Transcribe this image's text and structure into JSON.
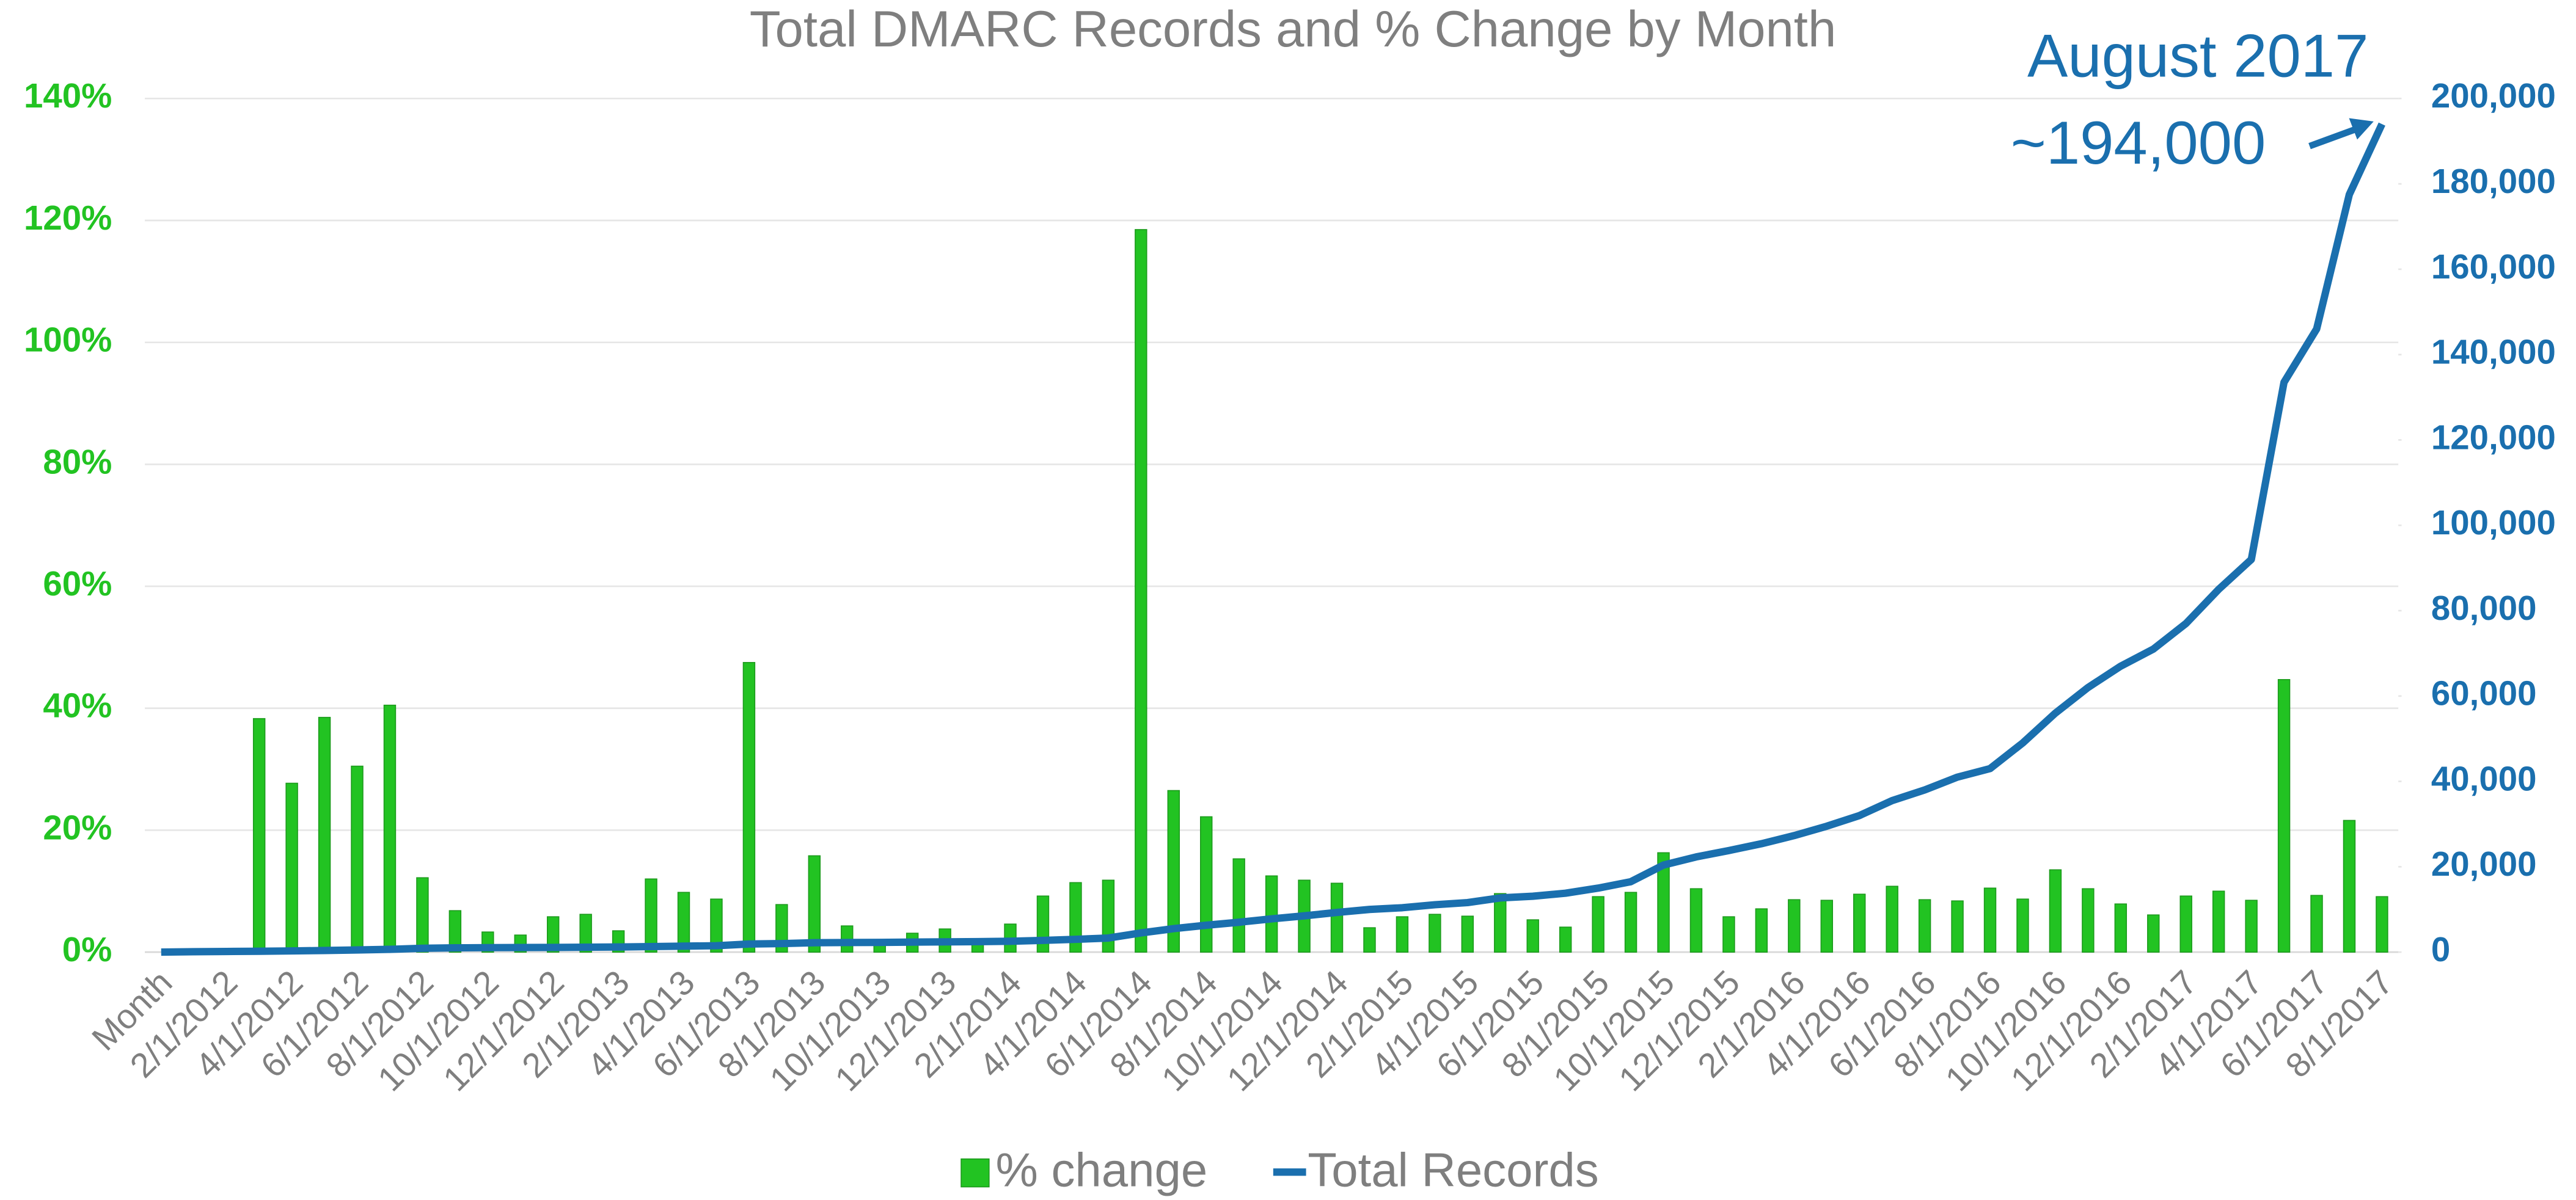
{
  "chart_data": {
    "type": "bar-line",
    "title": "Total DMARC Records and % Change by Month",
    "annotations": [
      "August 2017",
      "~194,000"
    ],
    "categories": [
      "Month",
      null,
      "2/1/2012",
      null,
      "4/1/2012",
      null,
      "6/1/2012",
      null,
      "8/1/2012",
      null,
      "10/1/2012",
      null,
      "12/1/2012",
      null,
      "2/1/2013",
      null,
      "4/1/2013",
      null,
      "6/1/2013",
      null,
      "8/1/2013",
      null,
      "10/1/2013",
      null,
      "12/1/2013",
      null,
      "2/1/2014",
      null,
      "4/1/2014",
      null,
      "6/1/2014",
      null,
      "8/1/2014",
      null,
      "10/1/2014",
      null,
      "12/1/2014",
      null,
      "2/1/2015",
      null,
      "4/1/2015",
      null,
      "6/1/2015",
      null,
      "8/1/2015",
      null,
      "10/1/2015",
      null,
      "12/1/2015",
      null,
      "2/1/2016",
      null,
      "4/1/2016",
      null,
      "6/1/2016",
      null,
      "8/1/2016",
      null,
      "10/1/2016",
      null,
      "12/1/2016",
      null,
      "2/1/2017",
      null,
      "4/1/2017",
      null,
      "6/1/2017",
      null,
      "8/1/2017"
    ],
    "series": [
      {
        "name": "% change",
        "type": "bar",
        "color": "#22c322",
        "values": [
          null,
          null,
          null,
          38.3,
          27.7,
          38.5,
          30.5,
          40.5,
          12.2,
          6.8,
          3.3,
          2.8,
          5.8,
          6.2,
          3.5,
          12,
          9.8,
          8.7,
          47.5,
          7.8,
          15.8,
          4.3,
          1.3,
          3.1,
          3.8,
          2.2,
          4.6,
          9.2,
          11.4,
          11.8,
          118.5,
          26.5,
          22.2,
          15.3,
          12.5,
          11.8,
          11.3,
          4,
          5.8,
          6.2,
          5.9,
          9.6,
          5.3,
          4.1,
          9.1,
          9.8,
          16.3,
          10.4,
          5.8,
          7.1,
          8.6,
          8.5,
          9.5,
          10.8,
          8.6,
          8.4,
          10.5,
          8.7,
          13.5,
          10.4,
          7.9,
          6.1,
          9.2,
          10,
          8.5,
          44.7,
          9.3,
          21.6,
          9.1
        ]
      },
      {
        "name": "Total Records",
        "type": "line",
        "axis": "y2",
        "color": "#1a6fae",
        "values": [
          0,
          100,
          150,
          200,
          280,
          380,
          500,
          650,
          900,
          1000,
          1050,
          1080,
          1100,
          1150,
          1200,
          1300,
          1400,
          1500,
          1900,
          2000,
          2200,
          2250,
          2280,
          2350,
          2400,
          2450,
          2550,
          2750,
          3000,
          3300,
          4500,
          5500,
          6300,
          7000,
          7800,
          8500,
          9300,
          10000,
          10400,
          11100,
          11600,
          12700,
          13100,
          13800,
          15000,
          16500,
          20400,
          22300,
          23800,
          25400,
          27300,
          29500,
          32000,
          35500,
          38000,
          41000,
          43000,
          49000,
          56000,
          62000,
          67000,
          71000,
          77000,
          85000,
          92000,
          133500,
          146000,
          177500,
          194000
        ]
      }
    ],
    "ylim": [
      0,
      140
    ],
    "yticks": [
      {
        "value": 0,
        "label": "0%"
      },
      {
        "value": 20,
        "label": "20%"
      },
      {
        "value": 40,
        "label": "40%"
      },
      {
        "value": 60,
        "label": "60%"
      },
      {
        "value": 80,
        "label": "80%"
      },
      {
        "value": 100,
        "label": "100%"
      },
      {
        "value": 120,
        "label": "120%"
      },
      {
        "value": 140,
        "label": "140%"
      }
    ],
    "y2lim": [
      0,
      200000
    ],
    "y2ticks": [
      0,
      {
        "value": 20000,
        "label": "20,000"
      },
      {
        "value": 40000,
        "label": "40,000"
      },
      {
        "value": 60000,
        "label": "60,000"
      },
      {
        "value": 80000,
        "label": "80,000"
      },
      {
        "value": 100000,
        "label": "100,000"
      },
      {
        "value": 120000,
        "label": "120,000"
      },
      {
        "value": 140000,
        "label": "140,000"
      },
      {
        "value": 160000,
        "label": "160,000"
      },
      {
        "value": 180000,
        "label": "180,000"
      },
      {
        "value": 200000,
        "label": "200,000"
      }
    ],
    "grid": true,
    "legend": "bottom"
  }
}
